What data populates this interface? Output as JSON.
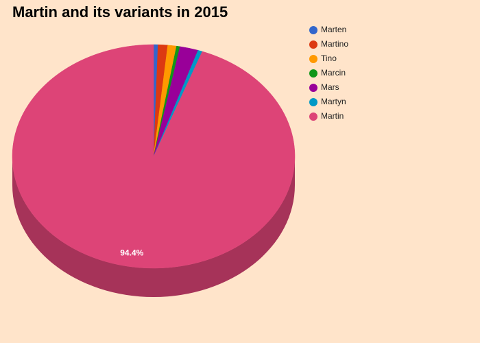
{
  "chart_data": {
    "type": "pie",
    "title": "Martin and its variants in 2015",
    "categories": [
      "Marten",
      "Martino",
      "Tino",
      "Marcin",
      "Mars",
      "Martyn",
      "Martin"
    ],
    "values": [
      0.5,
      1.1,
      1.0,
      0.4,
      2.1,
      0.5,
      94.4
    ],
    "value_labels": [
      null,
      null,
      null,
      null,
      null,
      null,
      "94.4%"
    ],
    "colors": [
      "#3366cc",
      "#dc3912",
      "#ff9900",
      "#109618",
      "#990099",
      "#0099c6",
      "#dd4477"
    ],
    "legend": "right",
    "three_d": true
  }
}
